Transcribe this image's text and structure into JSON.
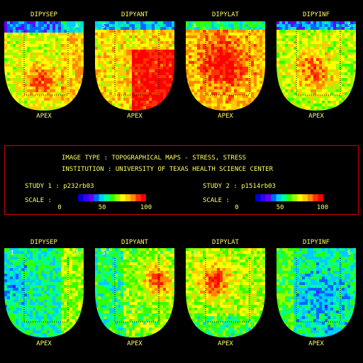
{
  "rows": [
    {
      "panels": [
        {
          "title": "DIPYSEP",
          "corner_left": "",
          "corner_right": "A",
          "apex": "APEX",
          "theme": "sep_stress"
        },
        {
          "title": "DIPYANT",
          "corner_left": "S",
          "corner_right": "",
          "apex": "APEX",
          "theme": "ant_stress"
        },
        {
          "title": "DIPYLAT",
          "corner_left": "A",
          "corner_right": "",
          "apex": "APEX",
          "theme": "lat_stress"
        },
        {
          "title": "DIPYINF",
          "corner_left": "",
          "corner_right": "S",
          "apex": "APEX",
          "theme": "inf_stress"
        }
      ]
    },
    {
      "panels": [
        {
          "title": "DIPYSEP",
          "corner_left": "I",
          "corner_right": "A",
          "apex": "APEX",
          "theme": "sep_rest"
        },
        {
          "title": "DIPYANT",
          "corner_left": "S",
          "corner_right": "",
          "apex": "APEX",
          "theme": "ant_rest"
        },
        {
          "title": "DIPYLAT",
          "corner_left": "A",
          "corner_right": "",
          "apex": "APEX",
          "theme": "lat_rest"
        },
        {
          "title": "DIPYINF",
          "corner_left": "",
          "corner_right": "S",
          "apex": "APEX",
          "theme": "inf_rest"
        }
      ]
    }
  ],
  "info": {
    "image_type_label": "IMAGE TYPE",
    "image_type_value": "TOPOGRAPHICAL MAPS - STRESS, STRESS",
    "institution_label": "INSTITUTION",
    "institution_value": "UNIVERSITY OF TEXAS HEALTH SCIENCE CENTER",
    "study1": {
      "label": "STUDY 1",
      "value": "p232rb03",
      "scale_label": "SCALE",
      "ticks": [
        "0",
        "50",
        "100"
      ]
    },
    "study2": {
      "label": "STUDY 2",
      "value": "p1514rb03",
      "scale_label": "SCALE",
      "ticks": [
        "0",
        "50",
        "100"
      ]
    }
  },
  "colors": {
    "text": "#ffff66",
    "box_border": "#cc0000",
    "background": "#000000",
    "scale": [
      "#0000cc",
      "#3300ff",
      "#6600ff",
      "#0066ff",
      "#00ccff",
      "#00ff99",
      "#33ff00",
      "#99ff00",
      "#ffff00",
      "#ffcc00",
      "#ff8800",
      "#ff3300",
      "#ff0000"
    ]
  }
}
